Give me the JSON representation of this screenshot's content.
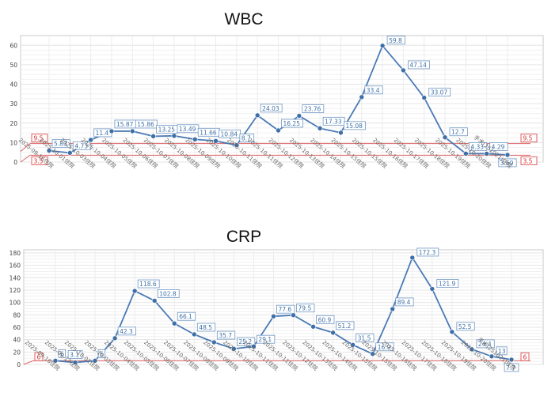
{
  "chart_data": [
    {
      "type": "line",
      "title": "WBC",
      "categories": [
        "2025-09-16住院",
        "2025-10-01住院",
        "2025-10-03住院",
        "2025-10-04住院",
        "2025-10-05住院",
        "2025-10-06住院",
        "2025-10-07住院",
        "2025-10-08住院",
        "2025-10-09住院",
        "2025-10-10住院",
        "2025-10-11住院",
        "2025-10-11住院",
        "2025-10-12住院",
        "2025-10-13住院",
        "2025-10-14住院",
        "2025-10-15住院",
        "2025-10-15住院",
        "2025-10-16住院",
        "2025-10-17住院",
        "2025-10-18住院",
        "2025-10-19住院",
        "2025-10-20住院",
        "手术(251021)住院"
      ],
      "values": [
        5.83,
        4.73,
        11.4,
        15.87,
        15.86,
        13.25,
        13.49,
        11.66,
        10.84,
        8.7,
        24.03,
        16.25,
        23.76,
        17.33,
        15.08,
        33.4,
        59.8,
        47.14,
        33.07,
        12.7,
        4.33,
        4.29,
        3.69
      ],
      "labels": [
        "5.83",
        "4.73",
        "11.4",
        "15.87",
        "15.86",
        "13.25",
        "13.49",
        "11.66",
        "10.84",
        "8.7",
        "24.03",
        "16.25",
        "23.76",
        "17.33",
        "15.08",
        "33.4",
        "59.8",
        "47.14",
        "33.07",
        "12.7",
        "4.33",
        "4.29",
        "3.69"
      ],
      "ylim": [
        0,
        65
      ],
      "yticks": [
        0,
        10,
        20,
        30,
        40,
        50,
        60
      ],
      "reference_lines": [
        3.5,
        9.5
      ],
      "reference_labels": [
        "3.5",
        "9.5"
      ],
      "grid": true,
      "line_color": "#4a7ab5",
      "ref_color": "#e06060"
    },
    {
      "type": "line",
      "title": "CRP",
      "categories": [
        "2025-09-16住院",
        "2025-09-17住院",
        "2025-10-01住院",
        "2025-10-03住院",
        "2025-10-04住院",
        "2025-10-05住院",
        "2025-10-06住院",
        "2025-10-07住院",
        "2025-10-08住院",
        "2025-10-09住院",
        "2025-10-10住院",
        "2025-10-11住院",
        "2025-10-11住院",
        "2025-10-12住院",
        "2025-10-13住院",
        "2025-10-14住院",
        "2025-10-15住院",
        "2025-10-15住院",
        "2025-10-16住院",
        "2025-10-17住院",
        "2025-10-18住院",
        "2025-10-19住院",
        "2025-10-20住院",
        "手术(251021)住院"
      ],
      "values": [
        6,
        3.1,
        6,
        42.3,
        118.6,
        102.8,
        66.1,
        48.5,
        35.7,
        25.2,
        29.1,
        77.6,
        79.5,
        60.9,
        51.2,
        31.5,
        16.9,
        89.4,
        172.3,
        121.9,
        52.5,
        24.4,
        13,
        7.7
      ],
      "labels": [
        "6",
        "3.1",
        "6",
        "42.3",
        "118.6",
        "102.8",
        "66.1",
        "48.5",
        "35.7",
        "25.2",
        "29.1",
        "77.6",
        "79.5",
        "60.9",
        "51.2",
        "31.5",
        "16.9",
        "89.4",
        "172.3",
        "121.9",
        "52.5",
        "24.4",
        "13",
        "7.7"
      ],
      "ylim": [
        0,
        185
      ],
      "yticks": [
        0,
        20,
        40,
        60,
        80,
        100,
        120,
        140,
        160,
        180
      ],
      "reference_lines": [
        6
      ],
      "reference_labels": [
        "6"
      ],
      "grid": true,
      "line_color": "#4a7ab5",
      "ref_color": "#e06060"
    }
  ]
}
